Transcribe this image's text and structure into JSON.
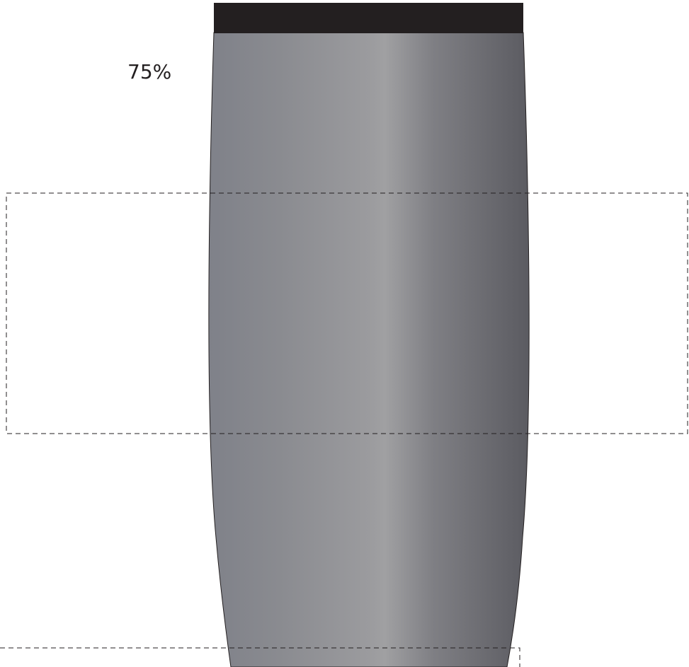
{
  "zoom": {
    "label": "75%"
  },
  "colors": {
    "background": "#ffffff",
    "cap": "#231f20",
    "outline": "#231f20",
    "body_gradient": [
      "#7f8189",
      "#8e8f93",
      "#a0a0a2",
      "#7b7b80",
      "#5c5c62"
    ],
    "guide_dash": "#231f20"
  }
}
